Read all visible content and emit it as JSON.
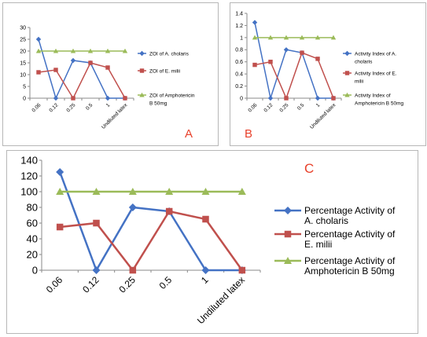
{
  "colors": {
    "blue": "#4472c4",
    "red": "#c0504d",
    "green": "#9bbb59",
    "letter": "#e8402a",
    "grid": "#8a8a8a"
  },
  "chart_data": [
    {
      "type": "line",
      "panel_label": "A",
      "categories": [
        "0.06",
        "0.12",
        "0.25",
        "0.5",
        "1",
        "Undiluted latex"
      ],
      "ylim": [
        0,
        30
      ],
      "yticks": [
        "0",
        "5",
        "10",
        "15",
        "20",
        "25",
        "30"
      ],
      "grid": false,
      "legend_position": "right",
      "series": [
        {
          "name": "ZOI of A. cholaris",
          "color": "#4472c4",
          "marker": "diamond",
          "values": [
            25,
            0,
            16,
            15,
            0,
            0
          ]
        },
        {
          "name": "ZOI of E. milii",
          "color": "#c0504d",
          "marker": "square",
          "values": [
            11,
            12,
            0,
            15,
            13,
            0
          ]
        },
        {
          "name": "ZOI of Amphotericin B 50mg",
          "color": "#9bbb59",
          "marker": "triangle",
          "values": [
            20,
            20,
            20,
            20,
            20,
            20
          ]
        }
      ]
    },
    {
      "type": "line",
      "panel_label": "B",
      "categories": [
        "0.06",
        "0.12",
        "0.25",
        "0.5",
        "1",
        "Undiluted latex"
      ],
      "ylim": [
        0,
        1.4
      ],
      "yticks": [
        "0",
        "0.2",
        "0.4",
        "0.6",
        "0.8",
        "1",
        "1.2",
        "1.4"
      ],
      "grid": false,
      "legend_position": "right",
      "series": [
        {
          "name": "Activity Index of A. cholaris",
          "color": "#4472c4",
          "marker": "diamond",
          "values": [
            1.25,
            0,
            0.8,
            0.75,
            0,
            0
          ]
        },
        {
          "name": "Activity Index of E. milii",
          "color": "#c0504d",
          "marker": "square",
          "values": [
            0.55,
            0.6,
            0,
            0.75,
            0.65,
            0
          ]
        },
        {
          "name": "Activity Index of Amphotericin B 50mg",
          "color": "#9bbb59",
          "marker": "triangle",
          "values": [
            1,
            1,
            1,
            1,
            1,
            1
          ]
        }
      ]
    },
    {
      "type": "line",
      "panel_label": "C",
      "categories": [
        "0.06",
        "0.12",
        "0.25",
        "0.5",
        "1",
        "Undiluted latex"
      ],
      "ylim": [
        0,
        140
      ],
      "yticks": [
        "0",
        "20",
        "40",
        "60",
        "80",
        "100",
        "120",
        "140"
      ],
      "grid": false,
      "legend_position": "right",
      "series": [
        {
          "name": "Percentage Activity  of A. cholaris",
          "color": "#4472c4",
          "marker": "diamond",
          "values": [
            125,
            0,
            80,
            75,
            0,
            0
          ]
        },
        {
          "name": "Percentage Activity  of E. milii",
          "color": "#c0504d",
          "marker": "square",
          "values": [
            55,
            60,
            0,
            75,
            65,
            0
          ]
        },
        {
          "name": "Percentage Activity  of Amphotericin B 50mg",
          "color": "#9bbb59",
          "marker": "triangle",
          "values": [
            100,
            100,
            100,
            100,
            100,
            100
          ]
        }
      ]
    }
  ]
}
